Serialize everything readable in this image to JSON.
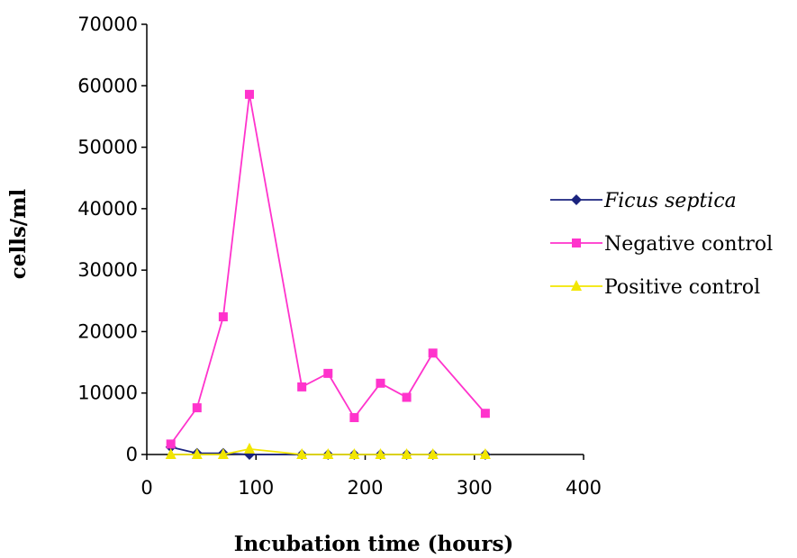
{
  "chart_data": {
    "type": "line",
    "title": "",
    "xlabel": "Incubation time (hours)",
    "ylabel": "cells/ml",
    "xlim": [
      0,
      400
    ],
    "ylim": [
      0,
      70000
    ],
    "x_ticks": [
      0,
      100,
      200,
      300,
      400
    ],
    "y_ticks": [
      0,
      10000,
      20000,
      30000,
      40000,
      50000,
      60000,
      70000
    ],
    "x_tick_labels": [
      "0",
      "100",
      "200",
      "300",
      "400"
    ],
    "y_tick_labels": [
      "0",
      "10000",
      "20000",
      "30000",
      "40000",
      "50000",
      "60000",
      "70000"
    ],
    "grid": false,
    "legend_position": "right",
    "series": [
      {
        "name": "Ficus septica",
        "italic": true,
        "color": "#1a237e",
        "marker": "diamond",
        "points": [
          [
            22,
            1200
          ],
          [
            46,
            200
          ],
          [
            70,
            200
          ],
          [
            94,
            0
          ],
          [
            142,
            0
          ],
          [
            166,
            0
          ],
          [
            190,
            0
          ],
          [
            214,
            0
          ],
          [
            238,
            0
          ],
          [
            262,
            0
          ],
          [
            310,
            0
          ]
        ]
      },
      {
        "name": "Negative control",
        "italic": false,
        "color": "#ff33cc",
        "marker": "square",
        "points": [
          [
            22,
            1700
          ],
          [
            46,
            7600
          ],
          [
            70,
            22400
          ],
          [
            94,
            58600
          ],
          [
            142,
            11000
          ],
          [
            166,
            13200
          ],
          [
            190,
            6000
          ],
          [
            214,
            11600
          ],
          [
            238,
            9300
          ],
          [
            262,
            16500
          ],
          [
            310,
            6700
          ]
        ]
      },
      {
        "name": "Positive control",
        "italic": false,
        "color": "#f2e600",
        "marker": "triangle",
        "points": [
          [
            22,
            0
          ],
          [
            46,
            0
          ],
          [
            70,
            0
          ],
          [
            94,
            900
          ],
          [
            142,
            0
          ],
          [
            166,
            0
          ],
          [
            190,
            0
          ],
          [
            214,
            0
          ],
          [
            238,
            0
          ],
          [
            262,
            0
          ],
          [
            310,
            0
          ]
        ]
      }
    ]
  }
}
